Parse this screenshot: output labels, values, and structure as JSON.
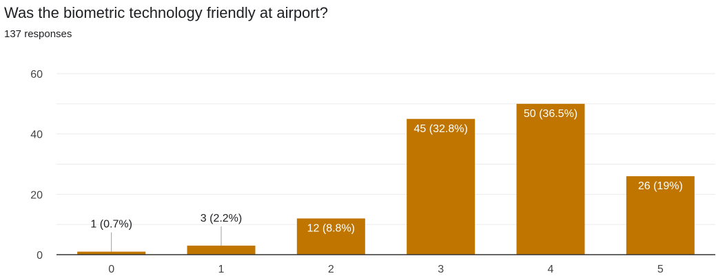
{
  "question": {
    "title": "Was the biometric technology friendly at airport?",
    "responses": "137 responses"
  },
  "colors": {
    "bar": "#bf7500",
    "grid": "#ebebeb",
    "axis": "#333333",
    "inside_label": "#ffffff",
    "outside_label": "#202124",
    "leader": "#9e9e9e"
  },
  "chart_data": {
    "type": "bar",
    "categories": [
      "0",
      "1",
      "2",
      "3",
      "4",
      "5"
    ],
    "values": [
      1,
      3,
      12,
      45,
      50,
      26
    ],
    "data_labels": [
      "1 (0.7%)",
      "3 (2.2%)",
      "12 (8.8%)",
      "45 (32.8%)",
      "50 (36.5%)",
      "26 (19%)"
    ],
    "ylim": [
      0,
      60
    ],
    "y_ticks": [
      0,
      20,
      40,
      60
    ],
    "y_gridlines": [
      0,
      10,
      20,
      30,
      40,
      50,
      60
    ],
    "grid": true,
    "legend": "none"
  }
}
